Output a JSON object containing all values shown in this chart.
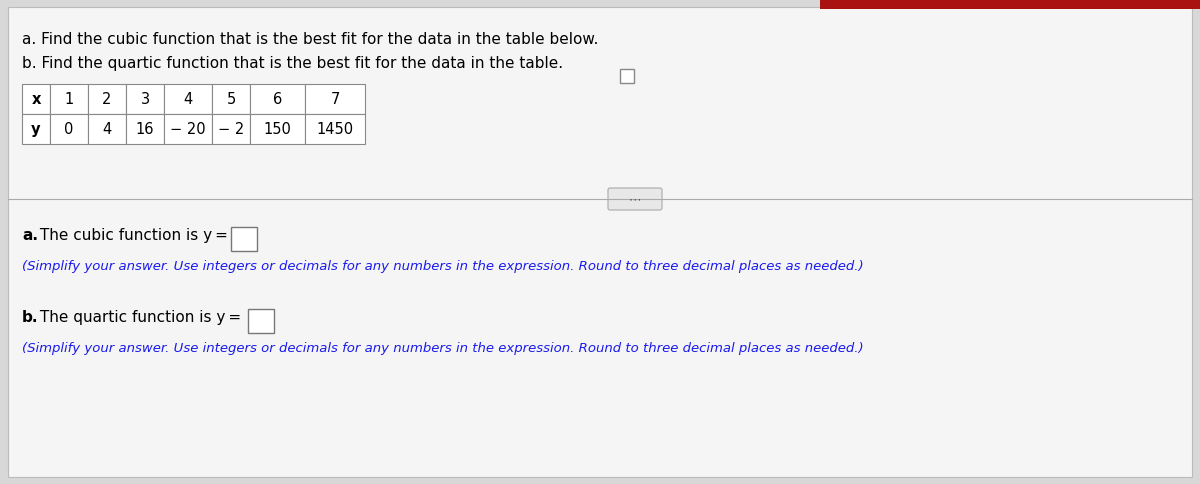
{
  "title_a": "a. Find the cubic function that is the best fit for the data in the table below.",
  "title_b": "b. Find the quartic function that is the best fit for the data in the table.",
  "table_x_label": "x",
  "table_y_label": "y",
  "table_x_values": [
    "1",
    "2",
    "3",
    "4",
    "5",
    "6",
    "7"
  ],
  "table_y_values": [
    "0",
    "4",
    "16",
    "− 20",
    "− 2",
    "150",
    "1450"
  ],
  "answer_a_bold": "a.",
  "answer_a_text": " The cubic function is y =",
  "answer_b_bold": "b.",
  "answer_b_text": " The quartic function is y =",
  "simplify_note": "(Simplify your answer. Use integers or decimals for any numbers in the expression. Round to three decimal places as needed.)",
  "background_color": "#d8d8d8",
  "white_bg": "#f0f0f0",
  "content_bg": "#f5f5f5",
  "box_fill": "#ffffff",
  "text_color": "#000000",
  "link_color": "#1a1aee",
  "table_border": "#888888",
  "divider_color": "#aaaaaa",
  "top_bar_color": "#aa1111",
  "dots_bg": "#e8e8e8",
  "dots_border": "#aaaaaa"
}
